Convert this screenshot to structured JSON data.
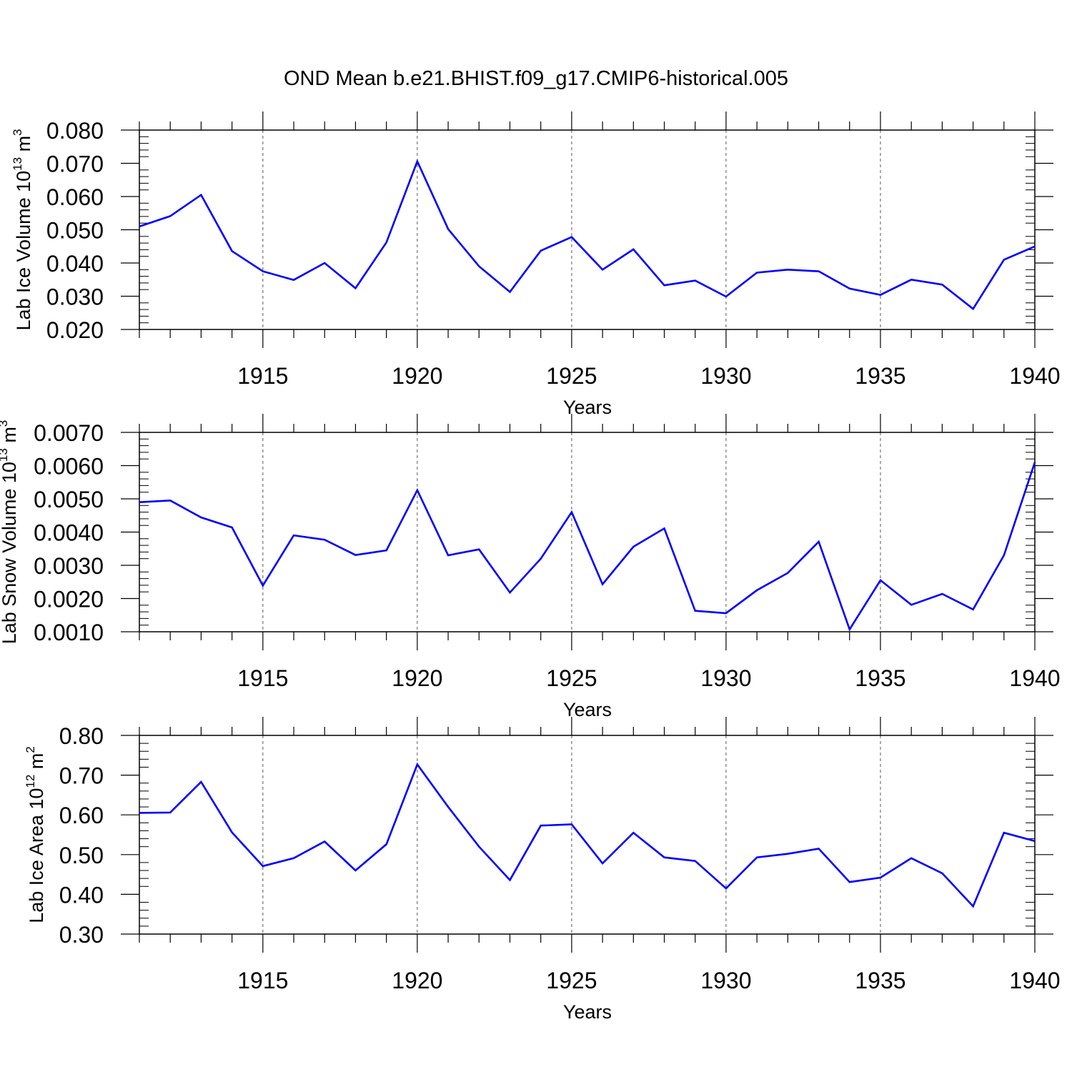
{
  "figure": {
    "title": "OND Mean b.e21.BHIST.f09_g17.CMIP6-historical.005",
    "line_color": "#0000ff",
    "grid_style": "dashed vertical at major x ticks"
  },
  "chart_data": [
    {
      "type": "line",
      "ylabel": {
        "main": "Lab Ice Volume 10",
        "exp": "13",
        "unit": " m",
        "unit_exp": "3"
      },
      "xlabel": "Years",
      "xlim": [
        1911,
        1940
      ],
      "ylim": [
        0.02,
        0.08
      ],
      "yticks": [
        0.02,
        0.03,
        0.04,
        0.05,
        0.06,
        0.07,
        0.08
      ],
      "ytick_labels": [
        "0.020",
        "0.030",
        "0.040",
        "0.050",
        "0.060",
        "0.070",
        "0.080"
      ],
      "xticks": [
        1915,
        1920,
        1925,
        1930,
        1935,
        1940
      ],
      "xtick_labels": [
        "1915",
        "1920",
        "1925",
        "1930",
        "1935",
        "1940"
      ],
      "grid": true,
      "x": [
        1911,
        1912,
        1913,
        1914,
        1915,
        1916,
        1917,
        1918,
        1919,
        1920,
        1921,
        1922,
        1923,
        1924,
        1925,
        1926,
        1927,
        1928,
        1929,
        1930,
        1931,
        1932,
        1933,
        1934,
        1935,
        1936,
        1937,
        1938,
        1939,
        1940
      ],
      "series": [
        {
          "values": [
            0.051,
            0.0541,
            0.0605,
            0.0436,
            0.0375,
            0.0349,
            0.04,
            0.0324,
            0.0462,
            0.0706,
            0.0502,
            0.039,
            0.0313,
            0.0437,
            0.0478,
            0.038,
            0.0441,
            0.0333,
            0.0347,
            0.0299,
            0.0371,
            0.038,
            0.0375,
            0.0323,
            0.0304,
            0.035,
            0.0335,
            0.0262,
            0.041,
            0.045
          ]
        }
      ]
    },
    {
      "type": "line",
      "ylabel": {
        "main": "Lab Snow Volume 10",
        "exp": "13",
        "unit": " m",
        "unit_exp": "3"
      },
      "xlabel": "Years",
      "xlim": [
        1911,
        1940
      ],
      "ylim": [
        0.001,
        0.007
      ],
      "yticks": [
        0.001,
        0.002,
        0.003,
        0.004,
        0.005,
        0.006,
        0.007
      ],
      "ytick_labels": [
        "0.0010",
        "0.0020",
        "0.0030",
        "0.0040",
        "0.0050",
        "0.0060",
        "0.0070"
      ],
      "xticks": [
        1915,
        1920,
        1925,
        1930,
        1935,
        1940
      ],
      "xtick_labels": [
        "1915",
        "1920",
        "1925",
        "1930",
        "1935",
        "1940"
      ],
      "grid": true,
      "x": [
        1911,
        1912,
        1913,
        1914,
        1915,
        1916,
        1917,
        1918,
        1919,
        1920,
        1921,
        1922,
        1923,
        1924,
        1925,
        1926,
        1927,
        1928,
        1929,
        1930,
        1931,
        1932,
        1933,
        1934,
        1935,
        1936,
        1937,
        1938,
        1939,
        1940
      ],
      "series": [
        {
          "values": [
            0.0049,
            0.00495,
            0.00444,
            0.00414,
            0.00239,
            0.0039,
            0.00377,
            0.00331,
            0.00345,
            0.00526,
            0.0033,
            0.00348,
            0.00218,
            0.0032,
            0.0046,
            0.00243,
            0.00356,
            0.00411,
            0.00163,
            0.00156,
            0.00225,
            0.00277,
            0.00371,
            0.00107,
            0.00255,
            0.00181,
            0.00214,
            0.00167,
            0.0033,
            0.0061
          ]
        }
      ]
    },
    {
      "type": "line",
      "ylabel": {
        "main": "Lab Ice Area 10",
        "exp": "12",
        "unit": " m",
        "unit_exp": "2"
      },
      "xlabel": "Years",
      "xlim": [
        1911,
        1940
      ],
      "ylim": [
        0.3,
        0.8
      ],
      "yticks": [
        0.3,
        0.4,
        0.5,
        0.6,
        0.7,
        0.8
      ],
      "ytick_labels": [
        "0.30",
        "0.40",
        "0.50",
        "0.60",
        "0.70",
        "0.80"
      ],
      "xticks": [
        1915,
        1920,
        1925,
        1930,
        1935,
        1940
      ],
      "xtick_labels": [
        "1915",
        "1920",
        "1925",
        "1930",
        "1935",
        "1940"
      ],
      "grid": true,
      "x": [
        1911,
        1912,
        1913,
        1914,
        1915,
        1916,
        1917,
        1918,
        1919,
        1920,
        1921,
        1922,
        1923,
        1924,
        1925,
        1926,
        1927,
        1928,
        1929,
        1930,
        1931,
        1932,
        1933,
        1934,
        1935,
        1936,
        1937,
        1938,
        1939,
        1940
      ],
      "series": [
        {
          "values": [
            0.605,
            0.606,
            0.683,
            0.556,
            0.471,
            0.491,
            0.533,
            0.46,
            0.526,
            0.727,
            0.62,
            0.52,
            0.436,
            0.573,
            0.576,
            0.478,
            0.555,
            0.493,
            0.484,
            0.415,
            0.493,
            0.502,
            0.515,
            0.431,
            0.442,
            0.491,
            0.453,
            0.37,
            0.555,
            0.534
          ]
        }
      ]
    }
  ]
}
